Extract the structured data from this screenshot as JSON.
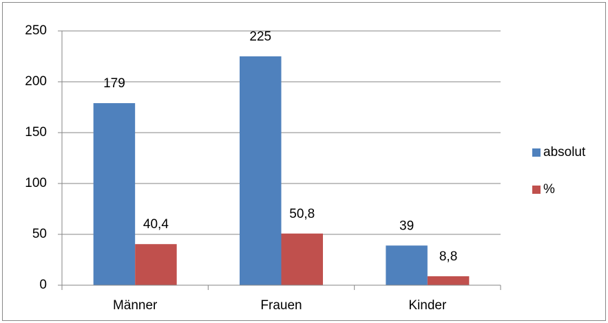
{
  "chart_data": {
    "type": "bar",
    "categories": [
      "Männer",
      "Frauen",
      "Kinder"
    ],
    "series": [
      {
        "name": "absolut",
        "color": "#4f81bd",
        "values": [
          179,
          225,
          39
        ]
      },
      {
        "name": "%",
        "color": "#c0504d",
        "values": [
          40.4,
          50.8,
          8.8
        ],
        "value_labels": [
          "40,4",
          "50,8",
          "8,8"
        ]
      }
    ],
    "ylim": [
      0,
      250
    ],
    "yticks": [
      0,
      50,
      100,
      150,
      200,
      250
    ],
    "grid": true,
    "legend": "right"
  }
}
